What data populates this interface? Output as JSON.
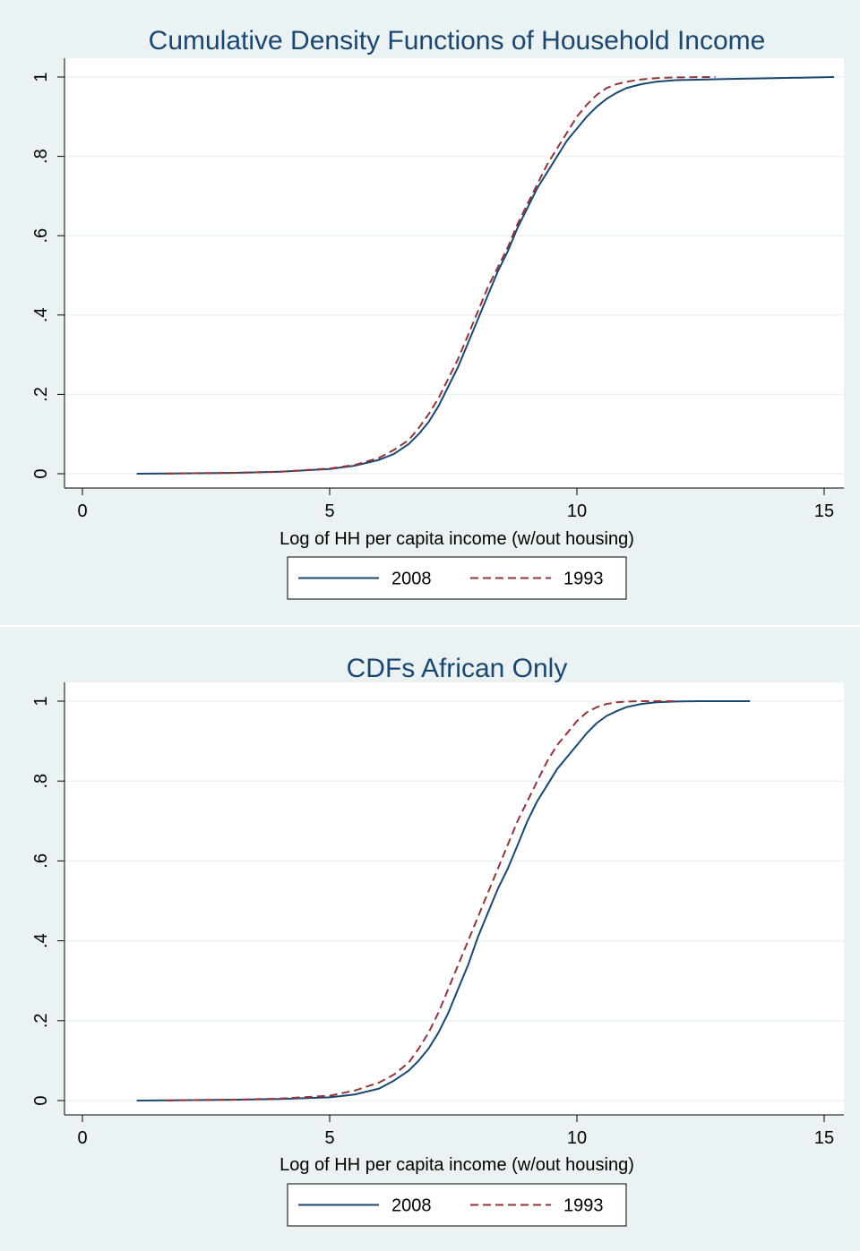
{
  "chart_data": [
    {
      "type": "line",
      "title": "Cumulative Density Functions of Household Income",
      "xlabel": "Log of HH per capita income (w/out housing)",
      "ylabel": "",
      "xlim": [
        0,
        15.5
      ],
      "ylim": [
        0,
        1
      ],
      "xticks": [
        0,
        5,
        10,
        15
      ],
      "yticks": [
        0,
        0.2,
        0.4,
        0.6,
        0.8,
        1
      ],
      "xtick_labels": [
        "0",
        "5",
        "10",
        "15"
      ],
      "ytick_labels": [
        "0",
        ".2",
        ".4",
        ".6",
        ".8",
        "1"
      ],
      "grid": true,
      "legend": "bottom",
      "series": [
        {
          "name": "2008",
          "color": "#1a476f",
          "style": "solid",
          "x": [
            1.1,
            2,
            3,
            4,
            5,
            5.5,
            6,
            6.3,
            6.6,
            6.8,
            7,
            7.2,
            7.4,
            7.6,
            7.8,
            8,
            8.2,
            8.4,
            8.6,
            8.8,
            9,
            9.2,
            9.4,
            9.6,
            9.8,
            10,
            10.2,
            10.4,
            10.6,
            10.8,
            11,
            11.3,
            11.6,
            12,
            13,
            14,
            15.2
          ],
          "y": [
            0,
            0.001,
            0.002,
            0.005,
            0.012,
            0.02,
            0.035,
            0.05,
            0.075,
            0.1,
            0.13,
            0.17,
            0.22,
            0.27,
            0.33,
            0.39,
            0.45,
            0.51,
            0.56,
            0.62,
            0.67,
            0.72,
            0.76,
            0.8,
            0.84,
            0.87,
            0.9,
            0.925,
            0.945,
            0.96,
            0.972,
            0.982,
            0.988,
            0.992,
            0.995,
            0.997,
            1
          ]
        },
        {
          "name": "1993",
          "color": "#90353b",
          "style": "dashed",
          "x": [
            1.7,
            2,
            3,
            4,
            5,
            5.5,
            6,
            6.3,
            6.6,
            6.8,
            7,
            7.2,
            7.4,
            7.6,
            7.8,
            8,
            8.2,
            8.4,
            8.6,
            8.8,
            9,
            9.2,
            9.4,
            9.6,
            9.8,
            10,
            10.2,
            10.4,
            10.6,
            10.8,
            11,
            11.3,
            11.6,
            12,
            12.8
          ],
          "y": [
            0,
            0.001,
            0.002,
            0.005,
            0.013,
            0.022,
            0.04,
            0.06,
            0.085,
            0.115,
            0.15,
            0.19,
            0.24,
            0.29,
            0.35,
            0.41,
            0.47,
            0.52,
            0.57,
            0.63,
            0.68,
            0.73,
            0.78,
            0.82,
            0.86,
            0.9,
            0.93,
            0.955,
            0.972,
            0.982,
            0.988,
            0.994,
            0.997,
            0.999,
            1
          ]
        }
      ]
    },
    {
      "type": "line",
      "title": "CDFs African Only",
      "xlabel": "Log of HH per capita income (w/out housing)",
      "ylabel": "",
      "xlim": [
        0,
        15.5
      ],
      "ylim": [
        0,
        1
      ],
      "xticks": [
        0,
        5,
        10,
        15
      ],
      "yticks": [
        0,
        0.2,
        0.4,
        0.6,
        0.8,
        1
      ],
      "xtick_labels": [
        "0",
        "5",
        "10",
        "15"
      ],
      "ytick_labels": [
        "0",
        ".2",
        ".4",
        ".6",
        ".8",
        "1"
      ],
      "grid": true,
      "legend": "bottom",
      "series": [
        {
          "name": "2008",
          "color": "#1a476f",
          "style": "solid",
          "x": [
            1.1,
            2,
            3,
            4,
            5,
            5.5,
            6,
            6.3,
            6.6,
            6.8,
            7,
            7.2,
            7.4,
            7.6,
            7.8,
            8,
            8.2,
            8.4,
            8.6,
            8.8,
            9,
            9.2,
            9.4,
            9.6,
            9.8,
            10,
            10.2,
            10.4,
            10.6,
            10.8,
            11,
            11.3,
            11.6,
            12,
            12.5,
            13.5
          ],
          "y": [
            0,
            0.001,
            0.002,
            0.004,
            0.008,
            0.015,
            0.03,
            0.05,
            0.075,
            0.1,
            0.13,
            0.17,
            0.22,
            0.28,
            0.34,
            0.41,
            0.47,
            0.53,
            0.58,
            0.64,
            0.7,
            0.75,
            0.79,
            0.83,
            0.86,
            0.89,
            0.92,
            0.945,
            0.963,
            0.975,
            0.985,
            0.993,
            0.997,
            0.999,
            1,
            1
          ]
        },
        {
          "name": "1993",
          "color": "#90353b",
          "style": "dashed",
          "x": [
            1.7,
            2,
            3,
            4,
            5,
            5.5,
            6,
            6.3,
            6.6,
            6.8,
            7,
            7.2,
            7.4,
            7.6,
            7.8,
            8,
            8.2,
            8.4,
            8.6,
            8.8,
            9,
            9.2,
            9.4,
            9.6,
            9.8,
            10,
            10.2,
            10.4,
            10.6,
            10.8,
            11,
            11.3,
            11.6,
            12
          ],
          "y": [
            0,
            0.001,
            0.002,
            0.005,
            0.012,
            0.025,
            0.045,
            0.065,
            0.095,
            0.13,
            0.17,
            0.22,
            0.28,
            0.34,
            0.4,
            0.46,
            0.52,
            0.58,
            0.64,
            0.7,
            0.75,
            0.8,
            0.85,
            0.89,
            0.92,
            0.95,
            0.972,
            0.985,
            0.993,
            0.997,
            0.999,
            1,
            1,
            1
          ]
        }
      ]
    }
  ]
}
